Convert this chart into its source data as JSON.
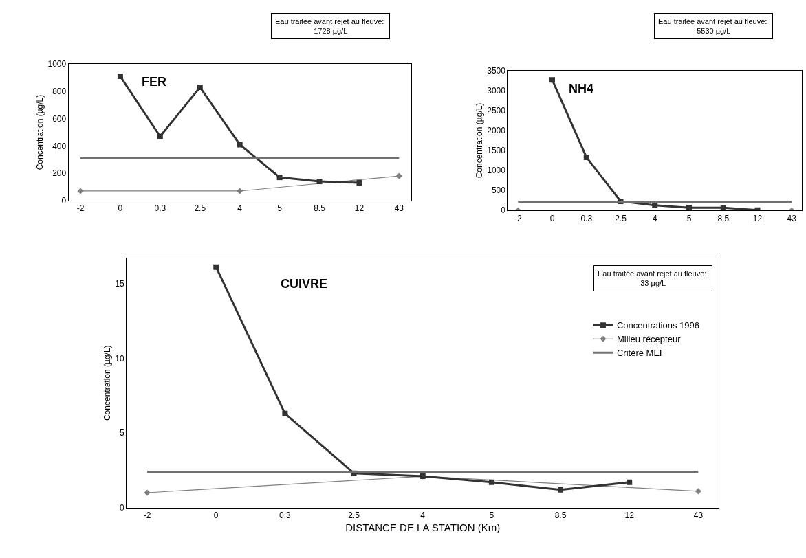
{
  "chart_data": [
    {
      "type": "line",
      "title": "FER",
      "ylabel": "Concentration (µg/L)",
      "annotations": [
        "Eau traitée avant rejet au fleuve: 1728 µg/L"
      ],
      "categories": [
        "-2",
        "0",
        "0.3",
        "2.5",
        "4",
        "5",
        "8.5",
        "12",
        "43"
      ],
      "series": [
        {
          "color": "#333333",
          "marker": "square",
          "values": [
            null,
            910,
            470,
            830,
            410,
            170,
            140,
            130,
            null
          ]
        },
        {
          "color": "#808080",
          "marker": "diamond",
          "values": [
            70,
            null,
            null,
            null,
            70,
            null,
            null,
            null,
            180
          ]
        }
      ],
      "ref_lines": [
        {
          "axis": "y",
          "value": 310,
          "color": "#707070"
        }
      ],
      "ylim": [
        0,
        1000
      ],
      "yticks": [
        0,
        200,
        400,
        600,
        800,
        1000
      ],
      "legend": false
    },
    {
      "type": "line",
      "title": "NH4",
      "ylabel": "Concentration (µg/L)",
      "annotations": [
        "Eau traitée avant rejet au fleuve: 5530 µg/L"
      ],
      "categories": [
        "-2",
        "0",
        "0.3",
        "2.5",
        "4",
        "5",
        "8.5",
        "12",
        "43"
      ],
      "series": [
        {
          "color": "#333333",
          "marker": "square",
          "values": [
            null,
            3270,
            1330,
            230,
            130,
            70,
            70,
            10,
            null
          ]
        },
        {
          "color": "#808080",
          "marker": "diamond",
          "values": [
            0,
            null,
            null,
            null,
            null,
            null,
            null,
            null,
            0
          ]
        }
      ],
      "ref_lines": [
        {
          "axis": "y",
          "value": 220,
          "color": "#707070"
        }
      ],
      "ylim": [
        0,
        3500
      ],
      "yticks": [
        0,
        500,
        1000,
        1500,
        2000,
        2500,
        3000,
        3500
      ],
      "legend": false
    },
    {
      "type": "line",
      "title": "CUIVRE",
      "ylabel": "Concentration (µg/L)",
      "xlabel": "DISTANCE DE LA STATION (Km)",
      "annotations": [
        "Eau traitée avant rejet au fleuve: 33 µg/L"
      ],
      "categories": [
        "-2",
        "0",
        "0.3",
        "2.5",
        "4",
        "5",
        "8.5",
        "12",
        "43"
      ],
      "series": [
        {
          "name": "Concentrations 1996",
          "color": "#333333",
          "marker": "square",
          "values": [
            null,
            16.1,
            6.3,
            2.3,
            2.1,
            1.7,
            1.2,
            1.7,
            null
          ]
        },
        {
          "name": "Milieu récepteur",
          "color": "#808080",
          "marker": "diamond",
          "values": [
            1.0,
            null,
            null,
            null,
            2.1,
            null,
            null,
            null,
            1.1
          ]
        }
      ],
      "ref_lines": [
        {
          "axis": "y",
          "value": 2.4,
          "label": "Critère MEF",
          "color": "#707070"
        }
      ],
      "ylim": [
        0,
        16.7
      ],
      "yticks": [
        0,
        5,
        10,
        15
      ],
      "legend": "right"
    }
  ]
}
